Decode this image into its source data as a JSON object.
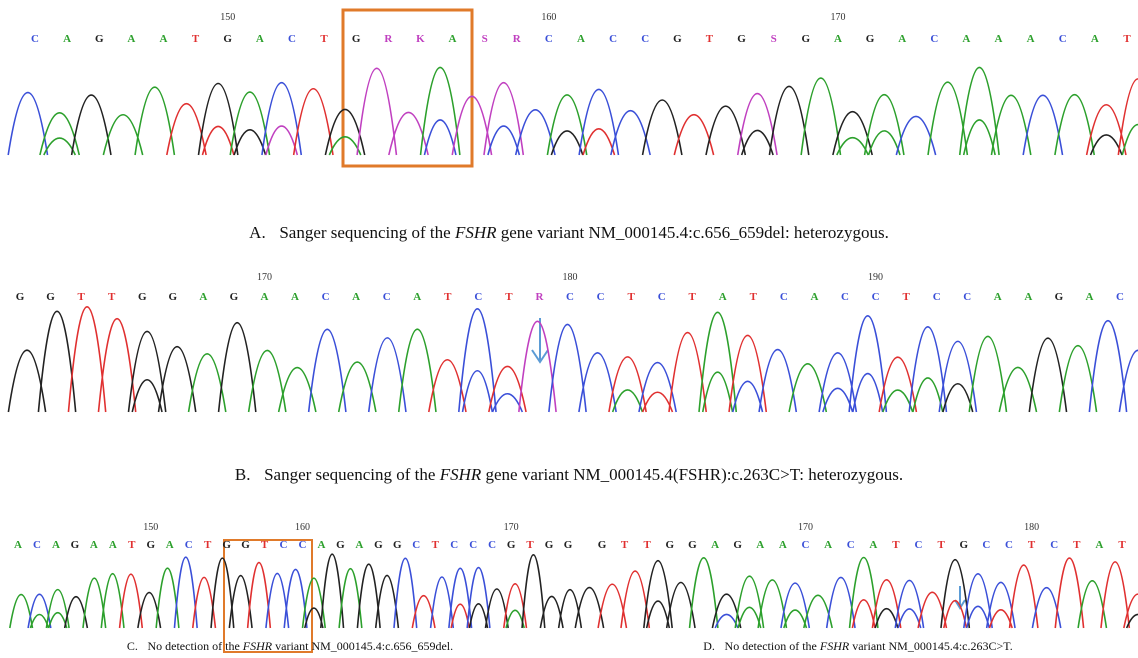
{
  "panels": [
    {
      "bases": [
        "C",
        "A",
        "G",
        "A",
        "A",
        "T",
        "G",
        "A",
        "C",
        "T",
        "G",
        "R",
        "K",
        "A",
        "S",
        "R",
        "C",
        "A",
        "C",
        "C",
        "G",
        "T",
        "G",
        "S",
        "G",
        "A",
        "G",
        "A",
        "C",
        "A",
        "A",
        "A",
        "C",
        "A",
        "T"
      ],
      "positions": [
        150,
        160,
        170
      ],
      "caption": {
        "label": "A.",
        "before": "Sanger sequencing of the ",
        "gene": "FSHR",
        "after": " gene variant NM_000145.4:c.656_659del: heterozygous."
      }
    },
    {
      "bases": [
        "G",
        "G",
        "T",
        "T",
        "G",
        "G",
        "A",
        "G",
        "A",
        "A",
        "C",
        "A",
        "C",
        "A",
        "T",
        "C",
        "T",
        "R",
        "C",
        "C",
        "T",
        "C",
        "T",
        "A",
        "T",
        "C",
        "A",
        "C",
        "C",
        "T",
        "C",
        "C",
        "A",
        "A",
        "G",
        "A",
        "C"
      ],
      "positions": [
        170,
        180,
        190
      ],
      "caption": {
        "label": "B.",
        "before": "Sanger sequencing of the ",
        "gene": "FSHR",
        "after": " gene variant NM_000145.4(FSHR):c.263C>T: heterozygous."
      }
    },
    {
      "bases": [
        "A",
        "C",
        "A",
        "G",
        "A",
        "A",
        "T",
        "G",
        "A",
        "C",
        "T",
        "G",
        "G",
        "T",
        "C",
        "C",
        "A",
        "G",
        "A",
        "G",
        "G",
        "C",
        "T",
        "C",
        "C",
        "C",
        "G",
        "T",
        "G",
        "G"
      ],
      "positions": [
        150,
        160,
        170
      ],
      "caption": {
        "label": "C.",
        "before": "No detection of the ",
        "gene": "FSHR",
        "after": " variant NM_000145.4:c.656_659del."
      }
    },
    {
      "bases": [
        "G",
        "T",
        "T",
        "G",
        "G",
        "A",
        "G",
        "A",
        "A",
        "C",
        "A",
        "C",
        "A",
        "T",
        "C",
        "T",
        "G",
        "C",
        "C",
        "T",
        "C",
        "T",
        "A",
        "T"
      ],
      "positions": [
        170,
        180
      ],
      "caption": {
        "label": "D.",
        "before": "No detection of the ",
        "gene": "FSHR",
        "after": " variant NM_000145.4:c.263C>T."
      }
    }
  ]
}
